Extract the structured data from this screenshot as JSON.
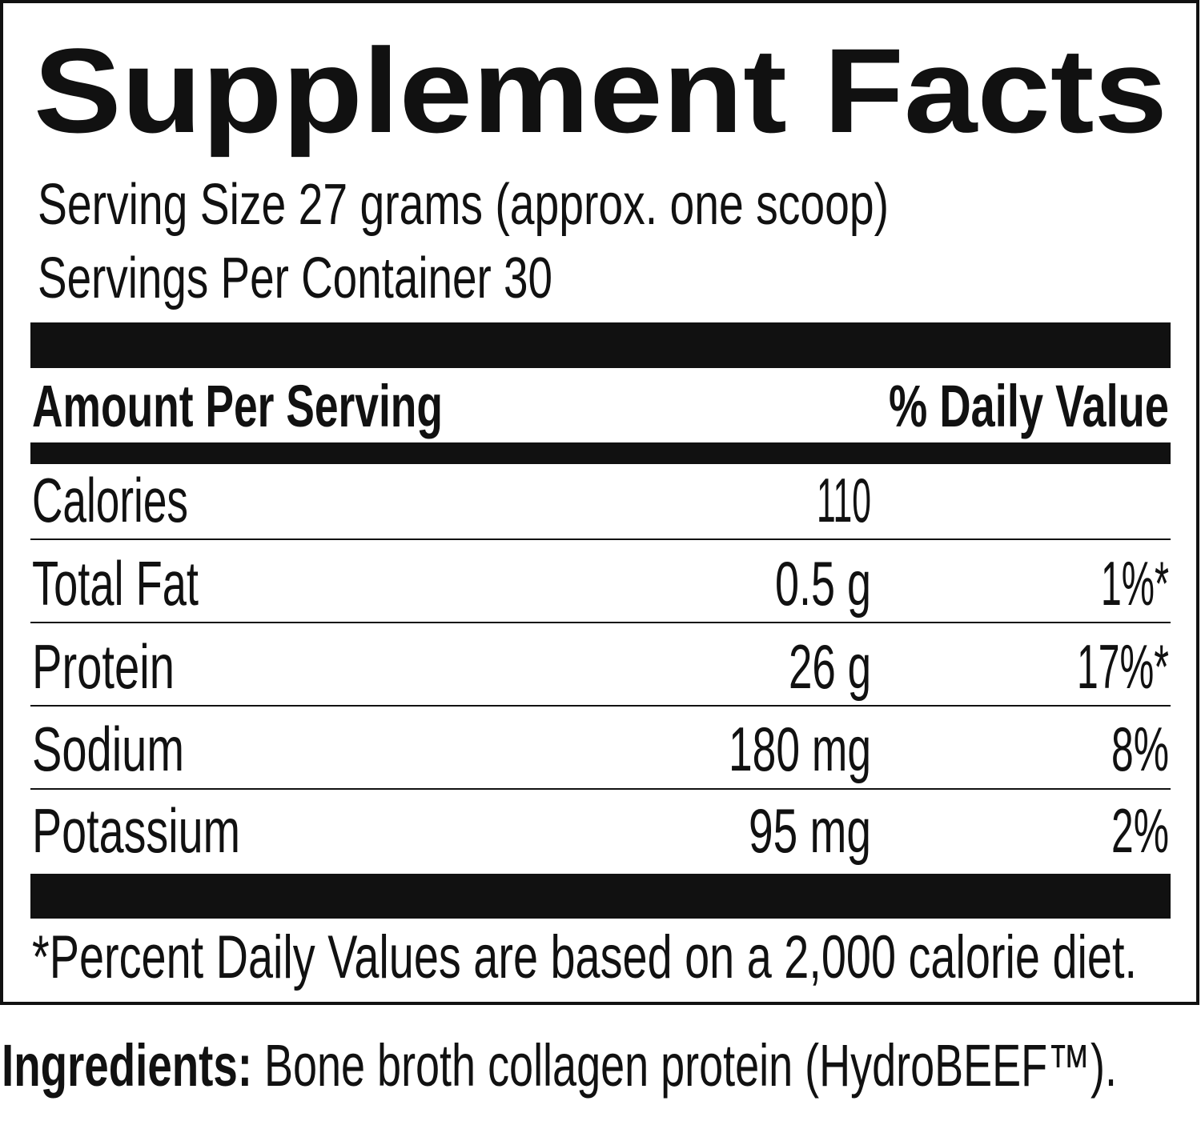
{
  "header": {
    "title": "Supplement Facts"
  },
  "serving": {
    "size": "Serving Size 27 grams (approx. one scoop)",
    "per_container": "Servings Per Container 30"
  },
  "table": {
    "header": {
      "amount": "Amount Per Serving",
      "dv": "% Daily Value"
    },
    "rows": [
      {
        "name": "Calories",
        "amount": "110"
      },
      {
        "name": "Total Fat",
        "amount": "0.5 g",
        "dv": "1%*"
      },
      {
        "name": "Protein",
        "amount": "26 g",
        "dv": "17%*"
      },
      {
        "name": "Sodium",
        "amount": "180 mg",
        "dv": "8%"
      },
      {
        "name": "Potassium",
        "amount": "95 mg",
        "dv": "2%"
      }
    ]
  },
  "footnote": "*Percent Daily Values are based on a 2,000 calorie diet.",
  "ingredients": {
    "label": "Ingredients:",
    "text": "Bone broth collagen protein (HydroBEEF™)."
  }
}
